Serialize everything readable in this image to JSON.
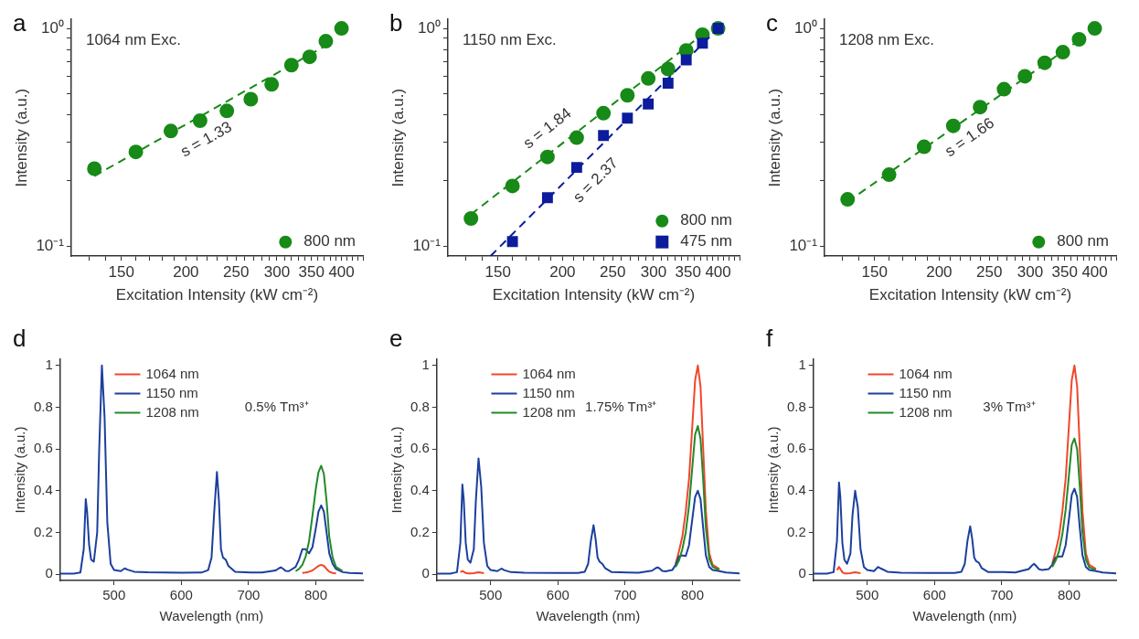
{
  "chart_data": [
    {
      "type": "scatter",
      "title": "a",
      "xlabel": "Excitation Intensity (kW cm⁻²)",
      "ylabel": "Intensity (a.u.)",
      "log": "xy",
      "legend": "bottom right",
      "xlim": [
        120,
        440
      ],
      "ylim": [
        0.09,
        1.1
      ],
      "xticks": [
        {
          "value": 130,
          "label": null
        },
        {
          "value": 140,
          "label": null
        },
        150,
        {
          "value": 160,
          "label": null
        },
        {
          "value": 170,
          "label": null
        },
        {
          "value": 180,
          "label": null
        },
        {
          "value": 190,
          "label": null
        },
        200,
        {
          "value": 210,
          "label": null
        },
        {
          "value": 220,
          "label": null
        },
        {
          "value": 230,
          "label": null
        },
        {
          "value": 240,
          "label": null
        },
        250,
        {
          "value": 260,
          "label": null
        },
        {
          "value": 270,
          "label": null
        },
        {
          "value": 280,
          "label": null
        },
        {
          "value": 290,
          "label": null
        },
        300,
        {
          "value": 310,
          "label": null
        },
        {
          "value": 320,
          "label": null
        },
        {
          "value": 330,
          "label": null
        },
        {
          "value": 340,
          "label": null
        },
        350,
        {
          "value": 360,
          "label": null
        },
        {
          "value": 370,
          "label": null
        },
        {
          "value": 380,
          "label": null
        },
        {
          "value": 390,
          "label": null
        },
        400,
        {
          "value": 410,
          "label": null
        },
        {
          "value": 420,
          "label": null
        },
        {
          "value": 430,
          "label": null
        },
        {
          "value": 440,
          "label": null
        }
      ],
      "yticks": [
        {
          "value": 0.1,
          "label": "10⁻¹"
        },
        {
          "value": 0.2,
          "label": null
        },
        {
          "value": 0.3,
          "label": null
        },
        {
          "value": 0.4,
          "label": null
        },
        {
          "value": 0.5,
          "label": null
        },
        {
          "value": 0.6,
          "label": null
        },
        {
          "value": 0.7,
          "label": null
        },
        {
          "value": 0.8,
          "label": null
        },
        {
          "value": 0.9,
          "label": null
        },
        {
          "value": 1,
          "label": "10⁰"
        }
      ],
      "x": [
        133,
        160,
        187,
        213,
        240,
        267,
        293,
        320,
        347,
        373,
        400
      ],
      "series": [
        {
          "name": "800 nm",
          "color": "#178a17",
          "marker": "circle",
          "values": [
            0.227,
            0.271,
            0.338,
            0.377,
            0.418,
            0.473,
            0.553,
            0.678,
            0.74,
            0.873,
            1.0
          ]
        },
        {
          "type": "line",
          "color": "#178a17",
          "marker": "none",
          "line_style": "dashed",
          "x": [
            133,
            375
          ],
          "values": [
            0.21,
            0.84
          ]
        }
      ],
      "annotations": [
        "1064 nm Exc.",
        "s = 1.33"
      ]
    },
    {
      "type": "scatter",
      "title": "b",
      "xlabel": "Excitation Intensity (kW cm⁻²)",
      "ylabel": "Intensity (a.u.)",
      "log": "xy",
      "legend": "bottom right",
      "xlim": [
        120,
        440
      ],
      "ylim": [
        0.09,
        1.1
      ],
      "xticks": [
        {
          "value": 130,
          "label": null
        },
        {
          "value": 140,
          "label": null
        },
        150,
        {
          "value": 160,
          "label": null
        },
        {
          "value": 170,
          "label": null
        },
        {
          "value": 180,
          "label": null
        },
        {
          "value": 190,
          "label": null
        },
        200,
        {
          "value": 210,
          "label": null
        },
        {
          "value": 220,
          "label": null
        },
        {
          "value": 230,
          "label": null
        },
        {
          "value": 240,
          "label": null
        },
        250,
        {
          "value": 260,
          "label": null
        },
        {
          "value": 270,
          "label": null
        },
        {
          "value": 280,
          "label": null
        },
        {
          "value": 290,
          "label": null
        },
        300,
        {
          "value": 310,
          "label": null
        },
        {
          "value": 320,
          "label": null
        },
        {
          "value": 330,
          "label": null
        },
        {
          "value": 340,
          "label": null
        },
        350,
        {
          "value": 360,
          "label": null
        },
        {
          "value": 370,
          "label": null
        },
        {
          "value": 380,
          "label": null
        },
        {
          "value": 390,
          "label": null
        },
        400,
        {
          "value": 410,
          "label": null
        },
        {
          "value": 420,
          "label": null
        },
        {
          "value": 430,
          "label": null
        },
        {
          "value": 440,
          "label": null
        }
      ],
      "yticks": [
        {
          "value": 0.1,
          "label": "10⁻¹"
        },
        {
          "value": 0.2,
          "label": null
        },
        {
          "value": 0.3,
          "label": null
        },
        {
          "value": 0.4,
          "label": null
        },
        {
          "value": 0.5,
          "label": null
        },
        {
          "value": 0.6,
          "label": null
        },
        {
          "value": 0.7,
          "label": null
        },
        {
          "value": 0.8,
          "label": null
        },
        {
          "value": 0.9,
          "label": null
        },
        {
          "value": 1,
          "label": "10⁰"
        }
      ],
      "series": [
        {
          "name": "800 nm",
          "color": "#178a17",
          "marker": "circle",
          "x": [
            133,
            160,
            187,
            213,
            240,
            267,
            293,
            320,
            347,
            373,
            400
          ],
          "values": [
            0.134,
            0.189,
            0.257,
            0.315,
            0.408,
            0.493,
            0.589,
            0.651,
            0.792,
            0.936,
            1.0
          ]
        },
        {
          "name": "475 nm",
          "color": "#0c1c9c",
          "marker": "square",
          "x": [
            160,
            187,
            213,
            240,
            267,
            293,
            320,
            347,
            373,
            400
          ],
          "values": [
            0.105,
            0.167,
            0.23,
            0.322,
            0.387,
            0.45,
            0.56,
            0.717,
            0.855,
            1.0
          ]
        },
        {
          "type": "line",
          "color": "#178a17",
          "marker": "none",
          "line_style": "dashed",
          "x": [
            133,
            380
          ],
          "values": [
            0.14,
            0.97
          ]
        },
        {
          "type": "line",
          "color": "#0c1c9c",
          "marker": "none",
          "line_style": "dashed",
          "x": [
            145,
            400
          ],
          "values": [
            0.09,
            1.0
          ]
        }
      ],
      "annotations": [
        "1150 nm Exc.",
        "s = 1.84",
        "s = 2.37"
      ]
    },
    {
      "type": "scatter",
      "title": "c",
      "xlabel": "Excitation Intensity (kW cm⁻²)",
      "ylabel": "Intensity (a.u.)",
      "log": "xy",
      "legend": "bottom right",
      "xlim": [
        120,
        440
      ],
      "ylim": [
        0.09,
        1.1
      ],
      "xticks": [
        {
          "value": 130,
          "label": null
        },
        {
          "value": 140,
          "label": null
        },
        150,
        {
          "value": 160,
          "label": null
        },
        {
          "value": 170,
          "label": null
        },
        {
          "value": 180,
          "label": null
        },
        {
          "value": 190,
          "label": null
        },
        200,
        {
          "value": 210,
          "label": null
        },
        {
          "value": 220,
          "label": null
        },
        {
          "value": 230,
          "label": null
        },
        {
          "value": 240,
          "label": null
        },
        250,
        {
          "value": 260,
          "label": null
        },
        {
          "value": 270,
          "label": null
        },
        {
          "value": 280,
          "label": null
        },
        {
          "value": 290,
          "label": null
        },
        300,
        {
          "value": 310,
          "label": null
        },
        {
          "value": 320,
          "label": null
        },
        {
          "value": 330,
          "label": null
        },
        {
          "value": 340,
          "label": null
        },
        350,
        {
          "value": 360,
          "label": null
        },
        {
          "value": 370,
          "label": null
        },
        {
          "value": 380,
          "label": null
        },
        {
          "value": 390,
          "label": null
        },
        400,
        {
          "value": 410,
          "label": null
        },
        {
          "value": 420,
          "label": null
        },
        {
          "value": 430,
          "label": null
        },
        {
          "value": 440,
          "label": null
        }
      ],
      "yticks": [
        {
          "value": 0.1,
          "label": "10⁻¹"
        },
        {
          "value": 0.2,
          "label": null
        },
        {
          "value": 0.3,
          "label": null
        },
        {
          "value": 0.4,
          "label": null
        },
        {
          "value": 0.5,
          "label": null
        },
        {
          "value": 0.6,
          "label": null
        },
        {
          "value": 0.7,
          "label": null
        },
        {
          "value": 0.8,
          "label": null
        },
        {
          "value": 0.9,
          "label": null
        },
        {
          "value": 1,
          "label": "10⁰"
        }
      ],
      "x": [
        133,
        160,
        187,
        213,
        240,
        267,
        293,
        320,
        347,
        373,
        400
      ],
      "series": [
        {
          "name": "800 nm",
          "color": "#178a17",
          "marker": "circle",
          "values": [
            0.164,
            0.213,
            0.286,
            0.357,
            0.435,
            0.526,
            0.603,
            0.695,
            0.778,
            0.891,
            1.0
          ]
        },
        {
          "type": "line",
          "color": "#178a17",
          "marker": "none",
          "line_style": "dashed",
          "x": [
            133,
            380
          ],
          "values": [
            0.16,
            0.91
          ]
        }
      ],
      "annotations": [
        "1208 nm Exc.",
        "s = 1.66"
      ]
    },
    {
      "type": "line",
      "title": "d",
      "xlabel": "Wavelength (nm)",
      "ylabel": "Intensity (a.u.)",
      "legend": "top left",
      "marker": "none",
      "xlim": [
        420,
        870
      ],
      "ylim": [
        -0.03,
        1.03
      ],
      "xticks": [
        500,
        600,
        700,
        800
      ],
      "yticks": [
        0,
        0.2,
        0.4,
        0.6,
        0.8,
        1
      ],
      "x": [
        420,
        440,
        450,
        455,
        458,
        460,
        463,
        466,
        470,
        475,
        478,
        482,
        486,
        490,
        495,
        500,
        510,
        516,
        520,
        530,
        550,
        600,
        630,
        640,
        645,
        649,
        653,
        656,
        659,
        662,
        666,
        670,
        680,
        703,
        720,
        740,
        745,
        748,
        751,
        755,
        760,
        770,
        775,
        780,
        785,
        790,
        795,
        800,
        804,
        808,
        812,
        816,
        820,
        825,
        830,
        840,
        850,
        870
      ],
      "series": [
        {
          "name": "1064 nm",
          "color": "#f2462a",
          "values": [
            null,
            null,
            null,
            null,
            null,
            null,
            null,
            null,
            null,
            null,
            null,
            null,
            null,
            null,
            null,
            null,
            null,
            null,
            null,
            null,
            null,
            null,
            null,
            null,
            null,
            null,
            null,
            null,
            null,
            null,
            null,
            null,
            null,
            null,
            null,
            null,
            null,
            null,
            null,
            null,
            null,
            null,
            null,
            0.006,
            0.008,
            0.012,
            0.018,
            0.03,
            0.04,
            0.045,
            0.04,
            0.025,
            0.012,
            0.006,
            0.004,
            null,
            null,
            null
          ]
        },
        {
          "name": "1150 nm",
          "color": "#1c3f9e",
          "values": [
            0.003,
            0.003,
            0.008,
            0.12,
            0.36,
            0.3,
            0.14,
            0.07,
            0.06,
            0.2,
            0.6,
            1.0,
            0.75,
            0.25,
            0.05,
            0.02,
            0.015,
            0.028,
            0.022,
            0.012,
            0.009,
            0.007,
            0.008,
            0.02,
            0.08,
            0.3,
            0.49,
            0.35,
            0.12,
            0.08,
            0.07,
            0.04,
            0.012,
            0.008,
            0.008,
            0.018,
            0.028,
            0.033,
            0.027,
            0.016,
            0.015,
            0.035,
            0.07,
            0.12,
            0.12,
            0.1,
            0.13,
            0.22,
            0.3,
            0.33,
            0.3,
            0.2,
            0.1,
            0.05,
            0.025,
            0.01,
            0.006,
            0.004
          ]
        },
        {
          "name": "1208 nm",
          "color": "#23892a",
          "values": [
            null,
            null,
            null,
            null,
            null,
            null,
            null,
            null,
            null,
            null,
            null,
            null,
            null,
            null,
            null,
            null,
            null,
            null,
            null,
            null,
            null,
            null,
            null,
            null,
            null,
            null,
            null,
            null,
            null,
            null,
            null,
            null,
            null,
            null,
            null,
            null,
            null,
            null,
            null,
            null,
            null,
            0.015,
            0.025,
            0.045,
            0.085,
            0.16,
            0.28,
            0.41,
            0.49,
            0.52,
            0.48,
            0.35,
            0.18,
            0.08,
            0.035,
            0.015,
            null,
            null
          ]
        }
      ],
      "annotations": [
        "0.5% Tm³⁺"
      ]
    },
    {
      "type": "line",
      "title": "e",
      "xlabel": "Wavelength (nm)",
      "ylabel": "Intensity (a.u.)",
      "legend": "top left",
      "marker": "none",
      "xlim": [
        420,
        870
      ],
      "ylim": [
        -0.03,
        1.03
      ],
      "xticks": [
        500,
        600,
        700,
        800
      ],
      "yticks": [
        0,
        0.2,
        0.4,
        0.6,
        0.8,
        1
      ],
      "x": [
        420,
        440,
        450,
        455,
        458,
        460,
        463,
        466,
        470,
        475,
        478,
        482,
        486,
        490,
        495,
        500,
        510,
        516,
        520,
        530,
        550,
        600,
        630,
        640,
        645,
        649,
        653,
        656,
        659,
        662,
        666,
        670,
        680,
        703,
        720,
        740,
        745,
        748,
        751,
        755,
        760,
        770,
        775,
        780,
        785,
        790,
        795,
        800,
        804,
        808,
        812,
        816,
        820,
        825,
        830,
        840,
        850,
        870
      ],
      "series": [
        {
          "name": "1064 nm",
          "color": "#f2462a",
          "values": [
            null,
            null,
            null,
            0.01,
            0.015,
            0.012,
            0.006,
            0.004,
            0.004,
            0.005,
            0.007,
            0.009,
            0.007,
            0.005,
            null,
            null,
            null,
            null,
            null,
            null,
            null,
            null,
            null,
            null,
            null,
            null,
            null,
            null,
            null,
            null,
            null,
            null,
            null,
            null,
            null,
            null,
            null,
            null,
            null,
            null,
            null,
            null,
            0.05,
            0.11,
            0.18,
            0.3,
            0.46,
            0.72,
            0.93,
            1.0,
            0.9,
            0.6,
            0.3,
            0.1,
            0.045,
            0.025,
            null,
            null
          ]
        },
        {
          "name": "1150 nm",
          "color": "#1c3f9e",
          "values": [
            0.003,
            0.003,
            0.01,
            0.15,
            0.43,
            0.36,
            0.15,
            0.07,
            0.055,
            0.12,
            0.35,
            0.555,
            0.42,
            0.15,
            0.04,
            0.02,
            0.015,
            0.027,
            0.02,
            0.01,
            0.007,
            0.006,
            0.006,
            0.012,
            0.05,
            0.16,
            0.235,
            0.17,
            0.08,
            0.06,
            0.05,
            0.03,
            0.01,
            0.008,
            0.007,
            0.017,
            0.028,
            0.033,
            0.028,
            0.016,
            0.014,
            0.02,
            0.045,
            0.085,
            0.09,
            0.087,
            0.14,
            0.27,
            0.37,
            0.4,
            0.36,
            0.22,
            0.09,
            0.035,
            0.02,
            0.015,
            0.008,
            0.004
          ]
        },
        {
          "name": "1208 nm",
          "color": "#23892a",
          "values": [
            null,
            null,
            null,
            null,
            null,
            null,
            null,
            null,
            null,
            null,
            null,
            null,
            null,
            null,
            null,
            null,
            null,
            null,
            null,
            null,
            null,
            null,
            null,
            null,
            null,
            null,
            null,
            null,
            null,
            null,
            null,
            null,
            null,
            null,
            null,
            null,
            null,
            null,
            null,
            null,
            null,
            null,
            0.035,
            0.065,
            0.12,
            0.2,
            0.33,
            0.52,
            0.67,
            0.71,
            0.65,
            0.45,
            0.22,
            0.075,
            0.035,
            0.02,
            null,
            null
          ]
        }
      ],
      "annotations": [
        "1.75% Tm³⁺"
      ]
    },
    {
      "type": "line",
      "title": "f",
      "xlabel": "Wavelength (nm)",
      "ylabel": "Intensity (a.u.)",
      "legend": "top left",
      "marker": "none",
      "xlim": [
        420,
        870
      ],
      "ylim": [
        -0.03,
        1.03
      ],
      "xticks": [
        500,
        600,
        700,
        800
      ],
      "yticks": [
        0,
        0.2,
        0.4,
        0.6,
        0.8,
        1
      ],
      "x": [
        420,
        440,
        450,
        455,
        458,
        460,
        463,
        466,
        470,
        475,
        478,
        482,
        486,
        490,
        495,
        500,
        510,
        516,
        520,
        530,
        550,
        600,
        630,
        640,
        645,
        649,
        653,
        656,
        659,
        662,
        666,
        670,
        680,
        703,
        720,
        740,
        745,
        748,
        751,
        755,
        760,
        770,
        775,
        780,
        785,
        790,
        795,
        800,
        804,
        808,
        812,
        816,
        820,
        825,
        830,
        840,
        850,
        870
      ],
      "series": [
        {
          "name": "1064 nm",
          "color": "#f2462a",
          "values": [
            null,
            null,
            null,
            0.02,
            0.035,
            0.025,
            0.01,
            0.004,
            0.004,
            0.005,
            0.007,
            0.009,
            0.007,
            0.005,
            null,
            null,
            null,
            null,
            null,
            null,
            null,
            null,
            null,
            null,
            null,
            null,
            null,
            null,
            null,
            null,
            null,
            null,
            null,
            null,
            null,
            null,
            null,
            null,
            null,
            null,
            null,
            null,
            0.05,
            0.11,
            0.18,
            0.3,
            0.46,
            0.72,
            0.93,
            1.0,
            0.9,
            0.6,
            0.3,
            0.1,
            0.045,
            0.025,
            null,
            null
          ]
        },
        {
          "name": "1150 nm",
          "color": "#1c3f9e",
          "values": [
            0.003,
            0.003,
            0.01,
            0.16,
            0.44,
            0.37,
            0.15,
            0.07,
            0.05,
            0.1,
            0.28,
            0.4,
            0.32,
            0.12,
            0.035,
            0.02,
            0.015,
            0.035,
            0.028,
            0.012,
            0.007,
            0.006,
            0.006,
            0.012,
            0.05,
            0.16,
            0.23,
            0.17,
            0.08,
            0.062,
            0.055,
            0.03,
            0.01,
            0.01,
            0.008,
            0.025,
            0.042,
            0.05,
            0.04,
            0.025,
            0.02,
            0.025,
            0.045,
            0.08,
            0.085,
            0.085,
            0.14,
            0.27,
            0.38,
            0.41,
            0.37,
            0.22,
            0.09,
            0.035,
            0.02,
            0.015,
            0.008,
            0.004
          ]
        },
        {
          "name": "1208 nm",
          "color": "#23892a",
          "values": [
            null,
            null,
            null,
            null,
            null,
            null,
            null,
            null,
            null,
            null,
            null,
            null,
            null,
            null,
            null,
            null,
            null,
            null,
            null,
            null,
            null,
            null,
            null,
            null,
            null,
            null,
            null,
            null,
            null,
            null,
            null,
            null,
            null,
            null,
            null,
            null,
            null,
            null,
            null,
            null,
            null,
            null,
            0.035,
            0.065,
            0.11,
            0.19,
            0.31,
            0.48,
            0.62,
            0.65,
            0.6,
            0.42,
            0.2,
            0.07,
            0.033,
            0.02,
            null,
            null
          ]
        }
      ],
      "annotations": [
        "3% Tm³⁺"
      ]
    }
  ]
}
